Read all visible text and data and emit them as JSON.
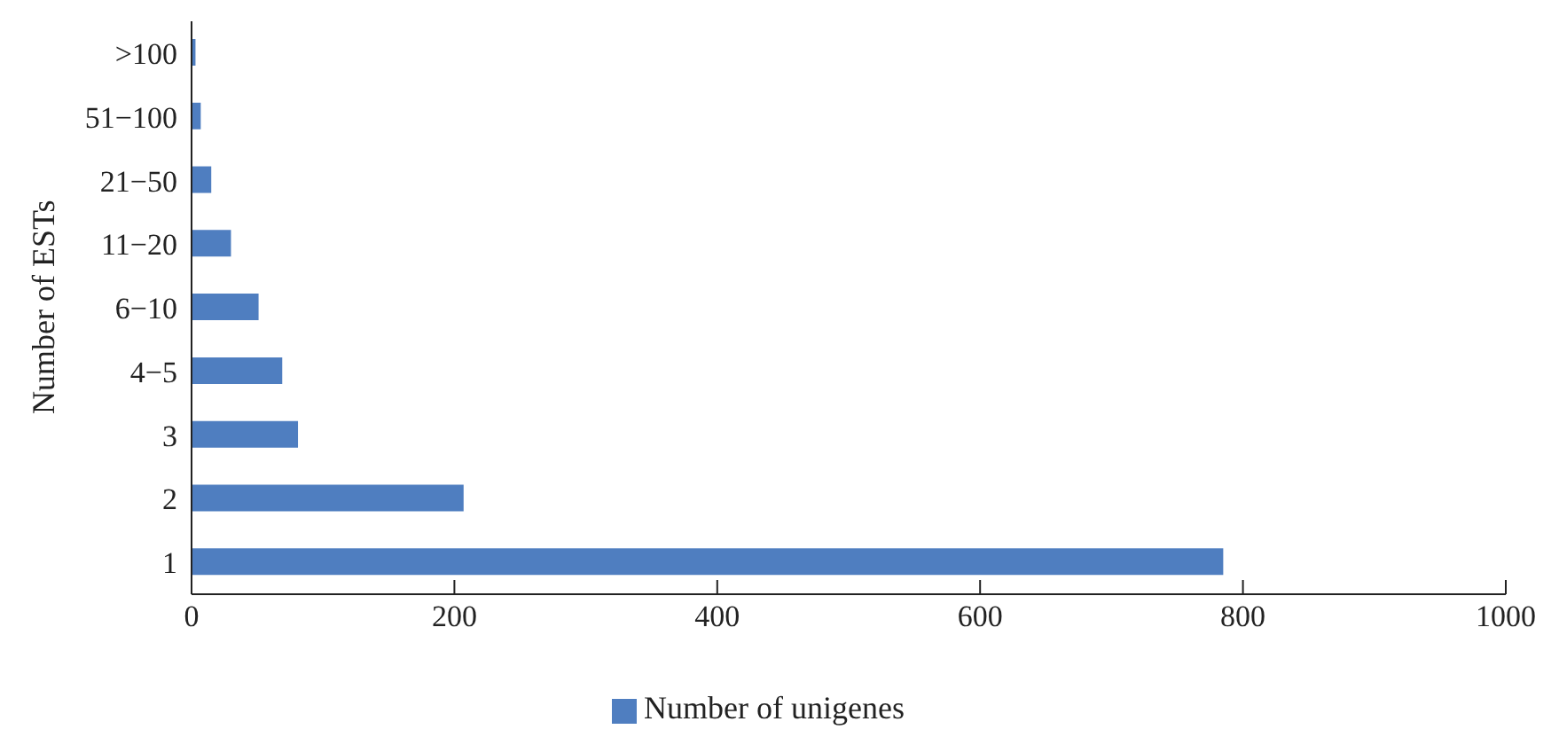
{
  "chart_data": {
    "type": "bar",
    "orientation": "horizontal",
    "ylabel": "Number of ESTs",
    "categories": [
      ">100",
      "51−100",
      "21−50",
      "11−20",
      "6−10",
      "4−5",
      "3",
      "2",
      "1"
    ],
    "series": [
      {
        "name": "Number of unigenes",
        "color": "#4f7ec0",
        "values": [
          3,
          7,
          15,
          30,
          51,
          69,
          81,
          207,
          785
        ]
      }
    ],
    "xlim": [
      0,
      1000
    ],
    "xticks": [
      0,
      200,
      400,
      600,
      800,
      1000
    ],
    "grid": false,
    "legend": "bottom"
  }
}
